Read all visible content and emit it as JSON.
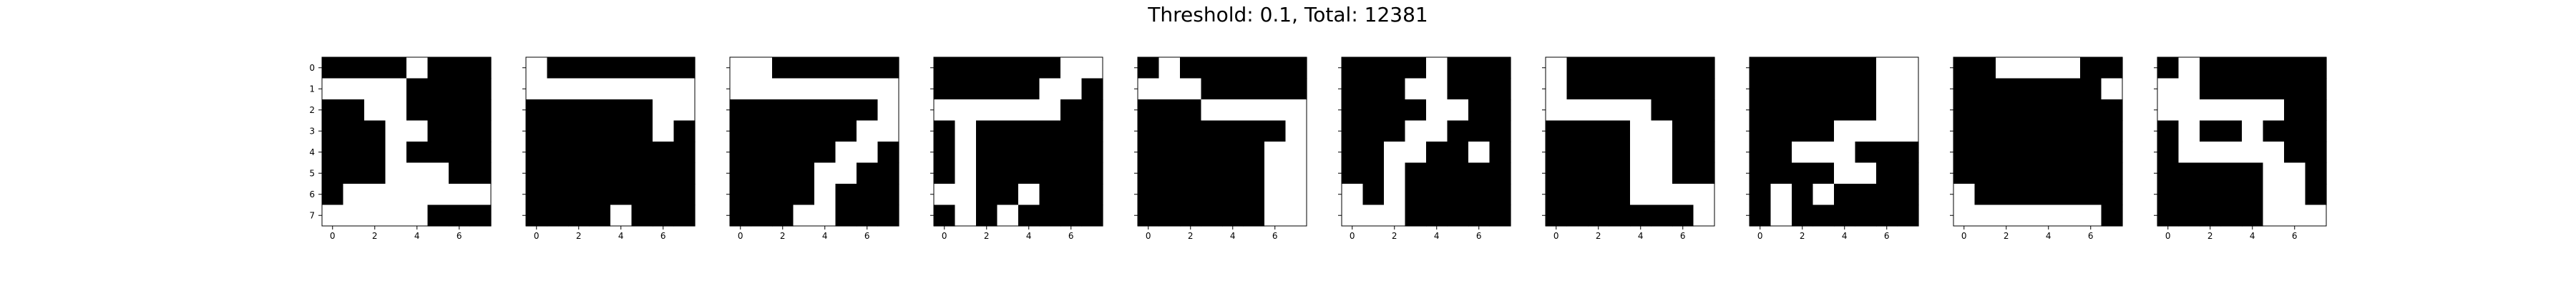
{
  "chart_data": {
    "type": "heatmap",
    "title": "Threshold: 0.1, Total: 12381",
    "xlabel": "",
    "ylabel": "",
    "cmap": {
      "on": "#ffffff",
      "off": "#000000"
    },
    "grid": false,
    "xticks": [
      0,
      2,
      4,
      6
    ],
    "yticks": [
      0,
      1,
      2,
      3,
      4,
      5,
      6,
      7
    ],
    "xlim": [
      -0.5,
      7.5
    ],
    "ylim": [
      7.5,
      -0.5
    ],
    "panels": [
      {
        "name": "",
        "grid": [
          [
            0,
            0,
            0,
            0,
            1,
            0,
            0,
            0
          ],
          [
            1,
            1,
            1,
            1,
            0,
            0,
            0,
            0
          ],
          [
            0,
            0,
            1,
            1,
            0,
            0,
            0,
            0
          ],
          [
            0,
            0,
            0,
            1,
            1,
            0,
            0,
            0
          ],
          [
            0,
            0,
            0,
            1,
            0,
            0,
            0,
            0
          ],
          [
            0,
            0,
            0,
            1,
            1,
            1,
            0,
            0
          ],
          [
            0,
            1,
            1,
            1,
            1,
            1,
            1,
            1
          ],
          [
            1,
            1,
            1,
            1,
            1,
            0,
            0,
            0
          ]
        ]
      },
      {
        "name": "",
        "grid": [
          [
            1,
            0,
            0,
            0,
            0,
            0,
            0,
            0
          ],
          [
            1,
            1,
            1,
            1,
            1,
            1,
            1,
            1
          ],
          [
            0,
            0,
            0,
            0,
            0,
            0,
            1,
            1
          ],
          [
            0,
            0,
            0,
            0,
            0,
            0,
            1,
            0
          ],
          [
            0,
            0,
            0,
            0,
            0,
            0,
            0,
            0
          ],
          [
            0,
            0,
            0,
            0,
            0,
            0,
            0,
            0
          ],
          [
            0,
            0,
            0,
            0,
            0,
            0,
            0,
            0
          ],
          [
            0,
            0,
            0,
            0,
            1,
            0,
            0,
            0
          ]
        ]
      },
      {
        "name": "",
        "grid": [
          [
            1,
            1,
            0,
            0,
            0,
            0,
            0,
            0
          ],
          [
            1,
            1,
            1,
            1,
            1,
            1,
            1,
            1
          ],
          [
            0,
            0,
            0,
            0,
            0,
            0,
            0,
            1
          ],
          [
            0,
            0,
            0,
            0,
            0,
            0,
            1,
            1
          ],
          [
            0,
            0,
            0,
            0,
            0,
            1,
            1,
            0
          ],
          [
            0,
            0,
            0,
            0,
            1,
            1,
            0,
            0
          ],
          [
            0,
            0,
            0,
            0,
            1,
            0,
            0,
            0
          ],
          [
            0,
            0,
            0,
            1,
            1,
            0,
            0,
            0
          ]
        ]
      },
      {
        "name": "",
        "grid": [
          [
            0,
            0,
            0,
            0,
            0,
            0,
            1,
            1
          ],
          [
            0,
            0,
            0,
            0,
            0,
            1,
            1,
            0
          ],
          [
            1,
            1,
            1,
            1,
            1,
            1,
            0,
            0
          ],
          [
            0,
            1,
            0,
            0,
            0,
            0,
            0,
            0
          ],
          [
            0,
            1,
            0,
            0,
            0,
            0,
            0,
            0
          ],
          [
            0,
            1,
            0,
            0,
            0,
            0,
            0,
            0
          ],
          [
            1,
            1,
            0,
            0,
            1,
            0,
            0,
            0
          ],
          [
            0,
            1,
            0,
            1,
            0,
            0,
            0,
            0
          ]
        ]
      },
      {
        "name": "",
        "grid": [
          [
            0,
            1,
            0,
            0,
            0,
            0,
            0,
            0
          ],
          [
            1,
            1,
            1,
            0,
            0,
            0,
            0,
            0
          ],
          [
            0,
            0,
            0,
            1,
            1,
            1,
            1,
            1
          ],
          [
            0,
            0,
            0,
            0,
            0,
            0,
            0,
            1
          ],
          [
            0,
            0,
            0,
            0,
            0,
            0,
            1,
            1
          ],
          [
            0,
            0,
            0,
            0,
            0,
            0,
            1,
            1
          ],
          [
            0,
            0,
            0,
            0,
            0,
            0,
            1,
            1
          ],
          [
            0,
            0,
            0,
            0,
            0,
            0,
            1,
            1
          ]
        ]
      },
      {
        "name": "",
        "grid": [
          [
            0,
            0,
            0,
            0,
            1,
            0,
            0,
            0
          ],
          [
            0,
            0,
            0,
            1,
            1,
            0,
            0,
            0
          ],
          [
            0,
            0,
            0,
            0,
            1,
            1,
            0,
            0
          ],
          [
            0,
            0,
            0,
            1,
            1,
            0,
            0,
            0
          ],
          [
            0,
            0,
            1,
            1,
            0,
            0,
            1,
            0
          ],
          [
            0,
            0,
            1,
            0,
            0,
            0,
            0,
            0
          ],
          [
            1,
            0,
            1,
            0,
            0,
            0,
            0,
            0
          ],
          [
            1,
            1,
            1,
            0,
            0,
            0,
            0,
            0
          ]
        ]
      },
      {
        "name": "",
        "grid": [
          [
            1,
            0,
            0,
            0,
            0,
            0,
            0,
            0
          ],
          [
            1,
            0,
            0,
            0,
            0,
            0,
            0,
            0
          ],
          [
            1,
            1,
            1,
            1,
            1,
            0,
            0,
            0
          ],
          [
            0,
            0,
            0,
            0,
            1,
            1,
            0,
            0
          ],
          [
            0,
            0,
            0,
            0,
            1,
            1,
            0,
            0
          ],
          [
            0,
            0,
            0,
            0,
            1,
            1,
            0,
            0
          ],
          [
            0,
            0,
            0,
            0,
            1,
            1,
            1,
            1
          ],
          [
            0,
            0,
            0,
            0,
            0,
            0,
            0,
            1
          ]
        ]
      },
      {
        "name": "",
        "grid": [
          [
            0,
            0,
            0,
            0,
            0,
            0,
            1,
            1
          ],
          [
            0,
            0,
            0,
            0,
            0,
            0,
            1,
            1
          ],
          [
            0,
            0,
            0,
            0,
            0,
            0,
            1,
            1
          ],
          [
            0,
            0,
            0,
            0,
            1,
            1,
            1,
            1
          ],
          [
            0,
            0,
            1,
            1,
            1,
            0,
            0,
            0
          ],
          [
            0,
            0,
            0,
            0,
            1,
            1,
            0,
            0
          ],
          [
            0,
            1,
            0,
            1,
            0,
            0,
            0,
            0
          ],
          [
            0,
            1,
            0,
            0,
            0,
            0,
            0,
            0
          ]
        ]
      },
      {
        "name": "",
        "grid": [
          [
            0,
            0,
            1,
            1,
            1,
            1,
            0,
            0
          ],
          [
            0,
            0,
            0,
            0,
            0,
            0,
            0,
            1
          ],
          [
            0,
            0,
            0,
            0,
            0,
            0,
            0,
            0
          ],
          [
            0,
            0,
            0,
            0,
            0,
            0,
            0,
            0
          ],
          [
            0,
            0,
            0,
            0,
            0,
            0,
            0,
            0
          ],
          [
            0,
            0,
            0,
            0,
            0,
            0,
            0,
            0
          ],
          [
            1,
            0,
            0,
            0,
            0,
            0,
            0,
            0
          ],
          [
            1,
            1,
            1,
            1,
            1,
            1,
            1,
            0
          ]
        ]
      },
      {
        "name": "",
        "grid": [
          [
            0,
            1,
            0,
            0,
            0,
            0,
            0,
            0
          ],
          [
            1,
            1,
            0,
            0,
            0,
            0,
            0,
            0
          ],
          [
            1,
            1,
            1,
            1,
            1,
            1,
            0,
            0
          ],
          [
            0,
            1,
            0,
            0,
            1,
            0,
            0,
            0
          ],
          [
            0,
            1,
            1,
            1,
            1,
            1,
            0,
            0
          ],
          [
            0,
            0,
            0,
            0,
            0,
            1,
            1,
            0
          ],
          [
            0,
            0,
            0,
            0,
            0,
            1,
            1,
            0
          ],
          [
            0,
            0,
            0,
            0,
            0,
            1,
            1,
            1
          ]
        ]
      }
    ]
  }
}
